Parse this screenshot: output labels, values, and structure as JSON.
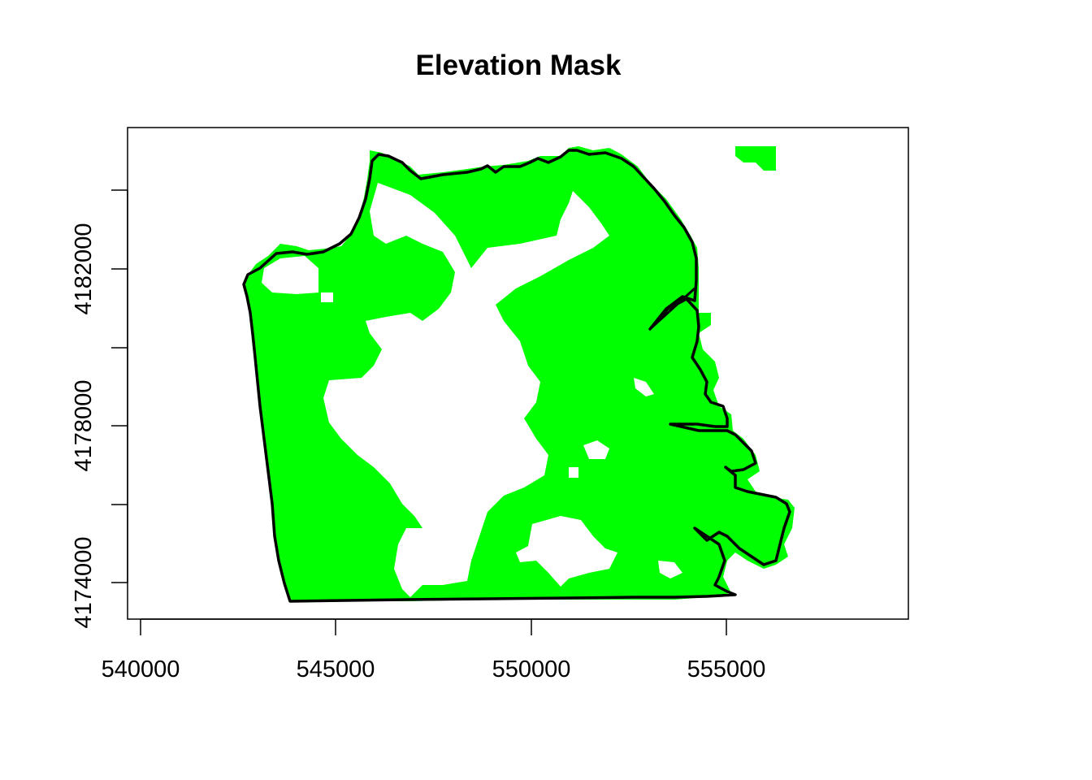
{
  "plot": {
    "title": "Elevation Mask",
    "fill_color": "#00ff00",
    "outline_color": "#000000",
    "x_axis": {
      "ticks": [
        "540000",
        "545000",
        "550000",
        "555000"
      ],
      "range": [
        539700,
        559600
      ]
    },
    "y_axis": {
      "ticks": [
        "4174000",
        "4178000",
        "4182000"
      ],
      "range": [
        4173100,
        4185500
      ]
    }
  }
}
